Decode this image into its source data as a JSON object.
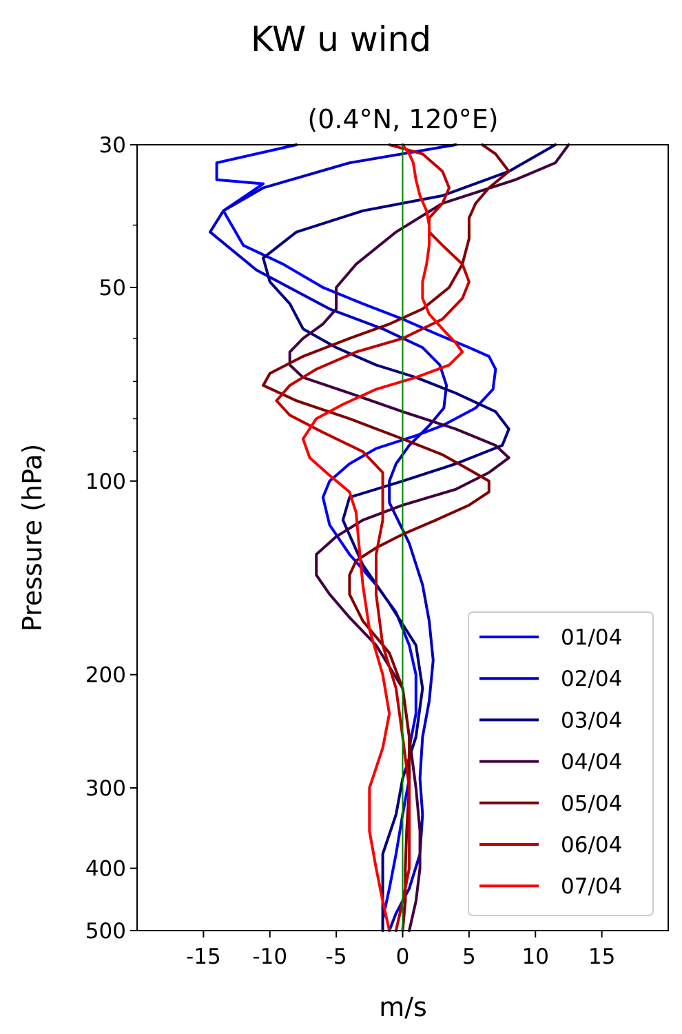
{
  "chart_data": {
    "type": "line",
    "title": "KW u wind",
    "subtitle": "(0.4°N, 120°E)",
    "xlabel": "m/s",
    "ylabel": "Pressure (hPa)",
    "xlim": [
      -20,
      20
    ],
    "ylim": [
      500,
      30
    ],
    "yscale": "log",
    "xticks": [
      -15,
      -10,
      -5,
      0,
      5,
      10,
      15
    ],
    "xtick_labels": [
      "-15",
      "-10",
      "-5",
      "0",
      "5",
      "10",
      "15"
    ],
    "yticks": [
      30,
      50,
      100,
      200,
      300,
      400,
      500
    ],
    "ytick_labels": [
      "30",
      "50",
      "100",
      "200",
      "300",
      "400",
      "500"
    ],
    "yminor_ticks": [
      40,
      60,
      70,
      80,
      90
    ],
    "reference_line": {
      "x": 0,
      "color": "#008000"
    },
    "legend_position": "lower-right",
    "grid": false,
    "series": [
      {
        "name": "01/04",
        "color": "#0000ff",
        "points": [
          [
            -8,
            30
          ],
          [
            -14,
            32
          ],
          [
            -14,
            34
          ],
          [
            -10.5,
            34.5
          ],
          [
            -13.5,
            38
          ],
          [
            -12,
            43
          ],
          [
            -9,
            46
          ],
          [
            -6,
            50
          ],
          [
            -3,
            53
          ],
          [
            0,
            56
          ],
          [
            2.5,
            59
          ],
          [
            5,
            62
          ],
          [
            6.5,
            64
          ],
          [
            7,
            67
          ],
          [
            6.8,
            72
          ],
          [
            5.5,
            77
          ],
          [
            3,
            82
          ],
          [
            1,
            85
          ],
          [
            -2,
            89
          ],
          [
            -4,
            94
          ],
          [
            -5.5,
            100
          ],
          [
            -6,
            106
          ],
          [
            -5.5,
            117
          ],
          [
            -4,
            130
          ],
          [
            -2,
            145
          ],
          [
            -0.5,
            160
          ],
          [
            0.5,
            180
          ],
          [
            1,
            200
          ],
          [
            1,
            230
          ],
          [
            0.5,
            260
          ],
          [
            0.5,
            290
          ],
          [
            0,
            330
          ],
          [
            -0.5,
            380
          ],
          [
            -1,
            430
          ],
          [
            -1.5,
            480
          ],
          [
            -1.5,
            500
          ]
        ]
      },
      {
        "name": "02/04",
        "color": "#0000cc",
        "points": [
          [
            4,
            30
          ],
          [
            -4,
            32
          ],
          [
            -10.5,
            35
          ],
          [
            -13.5,
            38
          ],
          [
            -14.5,
            41
          ],
          [
            -11,
            47
          ],
          [
            -5.5,
            54
          ],
          [
            -1.5,
            58
          ],
          [
            1.5,
            62
          ],
          [
            2.8,
            66
          ],
          [
            3.3,
            71
          ],
          [
            3.1,
            77
          ],
          [
            2,
            82
          ],
          [
            0.5,
            88
          ],
          [
            -0.5,
            94
          ],
          [
            -1,
            100
          ],
          [
            -1,
            108
          ],
          [
            0.5,
            125
          ],
          [
            1.5,
            145
          ],
          [
            2,
            165
          ],
          [
            2.3,
            190
          ],
          [
            2,
            220
          ],
          [
            1.5,
            250
          ],
          [
            1.3,
            290
          ],
          [
            1.5,
            330
          ],
          [
            1.3,
            380
          ],
          [
            0.5,
            430
          ],
          [
            -0.5,
            470
          ],
          [
            -1,
            500
          ]
        ]
      },
      {
        "name": "03/04",
        "color": "#000080",
        "points": [
          [
            11.5,
            30
          ],
          [
            8,
            33
          ],
          [
            3,
            36
          ],
          [
            -3,
            38
          ],
          [
            -8,
            41
          ],
          [
            -10.5,
            45
          ],
          [
            -10,
            49
          ],
          [
            -8.5,
            53
          ],
          [
            -7.5,
            58
          ],
          [
            -5,
            62
          ],
          [
            -2,
            66
          ],
          [
            1,
            69
          ],
          [
            4,
            73
          ],
          [
            7,
            78
          ],
          [
            8,
            83
          ],
          [
            7.5,
            88
          ],
          [
            4,
            94
          ],
          [
            0,
            100
          ],
          [
            -4,
            106
          ],
          [
            -4.5,
            115
          ],
          [
            -3,
            135
          ],
          [
            -1,
            155
          ],
          [
            1,
            180
          ],
          [
            1.5,
            210
          ],
          [
            1,
            250
          ],
          [
            0,
            290
          ],
          [
            -0.5,
            330
          ],
          [
            -1.5,
            380
          ],
          [
            -1.5,
            430
          ],
          [
            -1.5,
            480
          ],
          [
            -1.5,
            500
          ]
        ]
      },
      {
        "name": "04/04",
        "color": "#400040",
        "points": [
          [
            12.5,
            30
          ],
          [
            11.5,
            32
          ],
          [
            8.5,
            34
          ],
          [
            3,
            37
          ],
          [
            -0.5,
            41
          ],
          [
            -3.5,
            46
          ],
          [
            -5,
            50
          ],
          [
            -5,
            54
          ],
          [
            -6,
            57
          ],
          [
            -7.5,
            60
          ],
          [
            -8.5,
            63
          ],
          [
            -8.5,
            66
          ],
          [
            -7.5,
            69
          ],
          [
            -4,
            73
          ],
          [
            0,
            78
          ],
          [
            4,
            83
          ],
          [
            7,
            88
          ],
          [
            8,
            92
          ],
          [
            6.5,
            97
          ],
          [
            4,
            103
          ],
          [
            0,
            109
          ],
          [
            -3,
            115
          ],
          [
            -5,
            122
          ],
          [
            -6.5,
            130
          ],
          [
            -6.5,
            140
          ],
          [
            -5.5,
            150
          ],
          [
            -4,
            163
          ],
          [
            -2,
            180
          ],
          [
            0,
            210
          ],
          [
            0.5,
            250
          ],
          [
            1,
            300
          ],
          [
            1.3,
            350
          ],
          [
            1.3,
            400
          ],
          [
            1,
            450
          ],
          [
            0.5,
            500
          ]
        ]
      },
      {
        "name": "05/04",
        "color": "#800000",
        "points": [
          [
            6,
            30
          ],
          [
            7,
            31
          ],
          [
            8,
            33
          ],
          [
            6.5,
            35
          ],
          [
            5.5,
            37
          ],
          [
            5,
            39
          ],
          [
            5,
            42
          ],
          [
            4.5,
            46
          ],
          [
            3.5,
            50
          ],
          [
            1.5,
            54
          ],
          [
            -1,
            57
          ],
          [
            -4,
            60
          ],
          [
            -7.5,
            64
          ],
          [
            -10,
            68
          ],
          [
            -10.5,
            71
          ],
          [
            -8,
            75
          ],
          [
            -4,
            80
          ],
          [
            0,
            86
          ],
          [
            3,
            91
          ],
          [
            5,
            96
          ],
          [
            6.5,
            100
          ],
          [
            6.5,
            104
          ],
          [
            5,
            109
          ],
          [
            2.5,
            115
          ],
          [
            0,
            121
          ],
          [
            -2,
            127
          ],
          [
            -3.5,
            133
          ],
          [
            -4,
            140
          ],
          [
            -4,
            150
          ],
          [
            -3,
            165
          ],
          [
            -1,
            185
          ],
          [
            0,
            210
          ],
          [
            0.5,
            250
          ],
          [
            0.5,
            300
          ],
          [
            0.3,
            350
          ],
          [
            0.2,
            400
          ],
          [
            0.2,
            450
          ],
          [
            0,
            500
          ]
        ]
      },
      {
        "name": "06/04",
        "color": "#c00000",
        "points": [
          [
            -1,
            30
          ],
          [
            1.5,
            31
          ],
          [
            3,
            33
          ],
          [
            3.5,
            35
          ],
          [
            3,
            37
          ],
          [
            2,
            39
          ],
          [
            2,
            41
          ],
          [
            3,
            43
          ],
          [
            4.5,
            46
          ],
          [
            5,
            49
          ],
          [
            4.5,
            52
          ],
          [
            3,
            56
          ],
          [
            0,
            60
          ],
          [
            -3.5,
            63
          ],
          [
            -6.5,
            67
          ],
          [
            -8.5,
            71
          ],
          [
            -9.5,
            75
          ],
          [
            -8.5,
            79
          ],
          [
            -6,
            84
          ],
          [
            -3,
            90
          ],
          [
            -1.5,
            97
          ],
          [
            -1.5,
            104
          ],
          [
            -1.5,
            115
          ],
          [
            -2,
            130
          ],
          [
            -2,
            150
          ],
          [
            -1.5,
            180
          ],
          [
            -0.5,
            210
          ],
          [
            0,
            250
          ],
          [
            0.5,
            300
          ],
          [
            0.5,
            350
          ],
          [
            0.5,
            400
          ],
          [
            0,
            450
          ],
          [
            -0.5,
            500
          ]
        ]
      },
      {
        "name": "07/04",
        "color": "#ff0000",
        "points": [
          [
            0,
            30
          ],
          [
            0.5,
            31
          ],
          [
            0.8,
            32
          ],
          [
            1,
            34
          ],
          [
            1.3,
            36
          ],
          [
            1.8,
            38
          ],
          [
            2,
            40
          ],
          [
            2,
            43
          ],
          [
            1.8,
            46
          ],
          [
            1.5,
            49
          ],
          [
            1.5,
            52
          ],
          [
            2,
            55
          ],
          [
            3,
            58
          ],
          [
            4,
            61
          ],
          [
            4.5,
            63
          ],
          [
            3.5,
            66
          ],
          [
            1,
            69
          ],
          [
            -2,
            72
          ],
          [
            -4.5,
            76
          ],
          [
            -6.5,
            80
          ],
          [
            -7.5,
            86
          ],
          [
            -7,
            92
          ],
          [
            -5.5,
            98
          ],
          [
            -4,
            104
          ],
          [
            -3.5,
            112
          ],
          [
            -3.3,
            125
          ],
          [
            -3,
            145
          ],
          [
            -2.5,
            170
          ],
          [
            -1.5,
            200
          ],
          [
            -1,
            230
          ],
          [
            -1.5,
            260
          ],
          [
            -2.5,
            300
          ],
          [
            -2.5,
            350
          ],
          [
            -2,
            400
          ],
          [
            -1.5,
            450
          ],
          [
            -1,
            500
          ]
        ]
      }
    ]
  }
}
